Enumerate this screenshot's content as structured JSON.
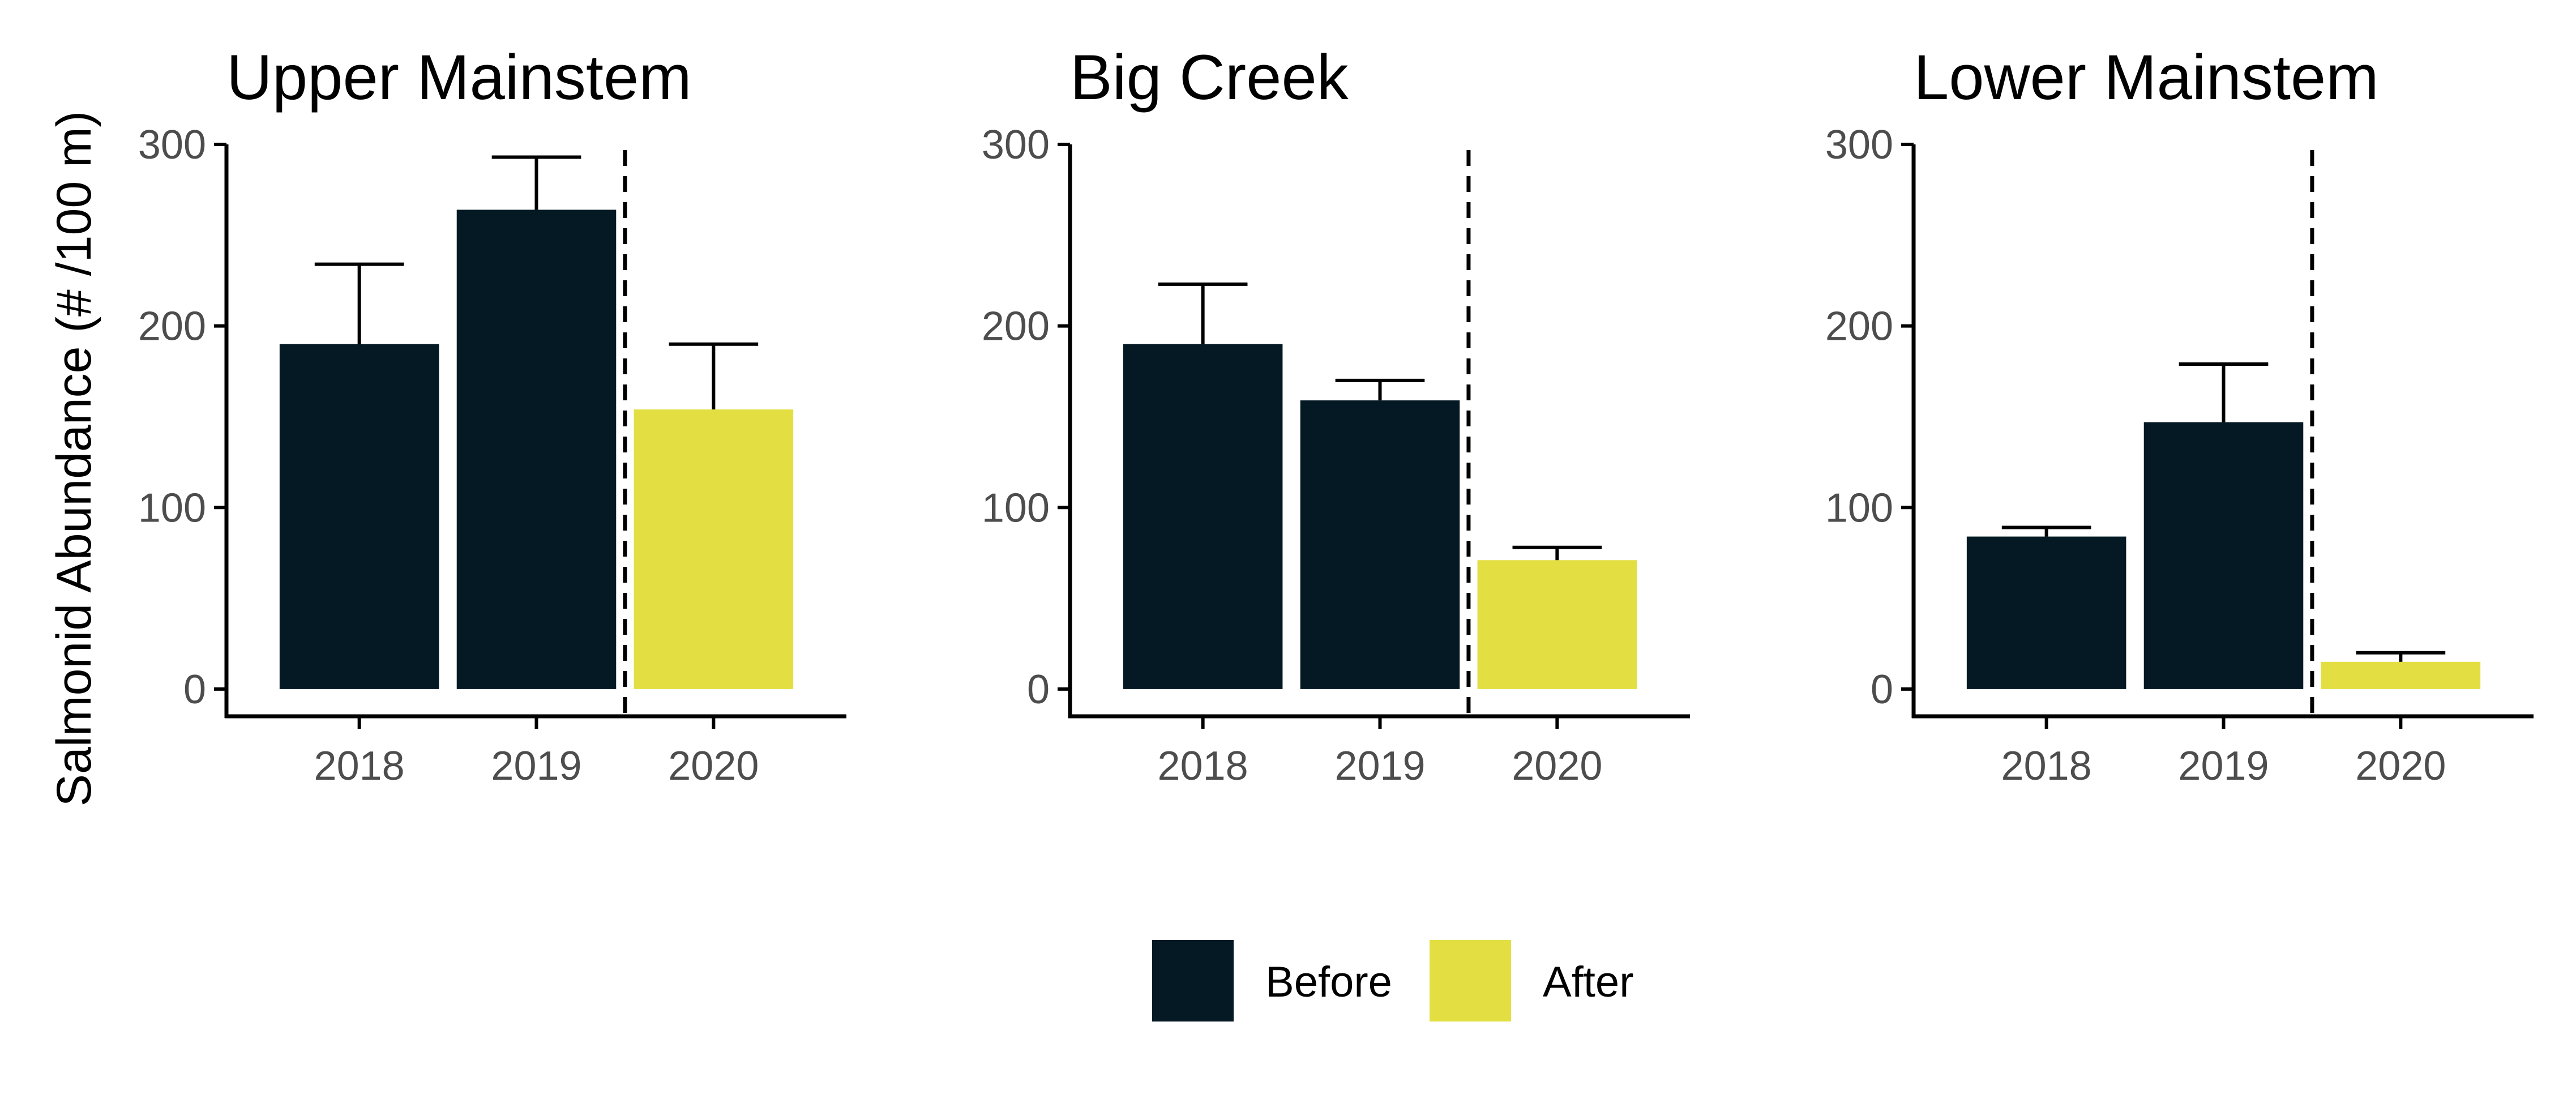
{
  "colors": {
    "Before": "#041923",
    "After": "#E3DF43",
    "axis": "#000000",
    "tick_text": "#4d4d4d"
  },
  "legend": {
    "placement": "bottom",
    "items": [
      {
        "label": "Before",
        "color": "#041923"
      },
      {
        "label": "After",
        "color": "#E3DF43"
      }
    ]
  },
  "chart_data": [
    {
      "type": "bar",
      "title": "Upper Mainstem",
      "ylabel": "Salmonid Abundance (# /100 m)",
      "categories": [
        "2018",
        "2019",
        "2020"
      ],
      "values": [
        190,
        264,
        154
      ],
      "error_upper": [
        234,
        293,
        190
      ],
      "groups": [
        "Before",
        "Before",
        "After"
      ],
      "ylim": [
        -15,
        300
      ],
      "yticks": [
        0,
        100,
        200,
        300
      ],
      "divider_between": [
        "2019",
        "2020"
      ],
      "grid": false
    },
    {
      "type": "bar",
      "title": "Big Creek",
      "ylabel": "",
      "categories": [
        "2018",
        "2019",
        "2020"
      ],
      "values": [
        190,
        159,
        71
      ],
      "error_upper": [
        223,
        170,
        78
      ],
      "groups": [
        "Before",
        "Before",
        "After"
      ],
      "ylim": [
        -15,
        300
      ],
      "yticks": [
        0,
        100,
        200,
        300
      ],
      "divider_between": [
        "2019",
        "2020"
      ],
      "grid": false
    },
    {
      "type": "bar",
      "title": "Lower Mainstem",
      "ylabel": "",
      "categories": [
        "2018",
        "2019",
        "2020"
      ],
      "values": [
        84,
        147,
        15
      ],
      "error_upper": [
        89,
        179,
        20
      ],
      "groups": [
        "Before",
        "Before",
        "After"
      ],
      "ylim": [
        -15,
        300
      ],
      "yticks": [
        0,
        100,
        200,
        300
      ],
      "divider_between": [
        "2019",
        "2020"
      ],
      "grid": false
    }
  ]
}
